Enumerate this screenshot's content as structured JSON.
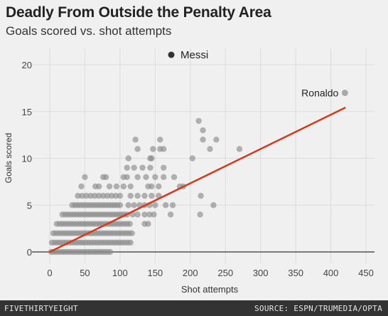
{
  "header": {
    "title": "Deadly From Outside the Penalty Area",
    "subtitle": "Goals scored vs. shot attempts"
  },
  "footer": {
    "logo": "FIVETHIRTYEIGHT",
    "source": "SOURCE: ESPN/TRUMEDIA/OPTA"
  },
  "colors": {
    "background": "#f0f0f0",
    "grid": "#dcdcdc",
    "points": "#8c8c8c",
    "highlight_points": "#aaaaaa",
    "legend_dot": "#333333",
    "trend_line": "#d8371c"
  },
  "chart_data": {
    "type": "scatter",
    "xlabel": "Shot attempts",
    "ylabel": "Goals scored",
    "xlim": [
      0,
      450
    ],
    "ylim": [
      0,
      20
    ],
    "x_ticks": [
      0,
      50,
      100,
      150,
      200,
      250,
      300,
      350,
      400,
      450
    ],
    "y_ticks": [
      0,
      5,
      10,
      15,
      20
    ],
    "grid": true,
    "legend": {
      "label": "Messi",
      "placement": "top-center"
    },
    "trend_line": {
      "x": [
        0,
        420
      ],
      "y": [
        0,
        15.4
      ]
    },
    "annotations": [
      {
        "text": "Ronaldo",
        "x": 420,
        "y": 17
      }
    ],
    "points": [
      {
        "x": 2,
        "y": 0
      },
      {
        "x": 6,
        "y": 0
      },
      {
        "x": 10,
        "y": 0
      },
      {
        "x": 14,
        "y": 0
      },
      {
        "x": 18,
        "y": 0
      },
      {
        "x": 22,
        "y": 0
      },
      {
        "x": 26,
        "y": 0
      },
      {
        "x": 30,
        "y": 0
      },
      {
        "x": 34,
        "y": 0
      },
      {
        "x": 38,
        "y": 0
      },
      {
        "x": 42,
        "y": 0
      },
      {
        "x": 46,
        "y": 0
      },
      {
        "x": 50,
        "y": 0
      },
      {
        "x": 54,
        "y": 0
      },
      {
        "x": 58,
        "y": 0
      },
      {
        "x": 62,
        "y": 0
      },
      {
        "x": 66,
        "y": 0
      },
      {
        "x": 70,
        "y": 0
      },
      {
        "x": 74,
        "y": 0
      },
      {
        "x": 78,
        "y": 0
      },
      {
        "x": 82,
        "y": 0
      },
      {
        "x": 86,
        "y": 0
      },
      {
        "x": 3,
        "y": 1
      },
      {
        "x": 7,
        "y": 1
      },
      {
        "x": 11,
        "y": 1
      },
      {
        "x": 15,
        "y": 1
      },
      {
        "x": 19,
        "y": 1
      },
      {
        "x": 23,
        "y": 1
      },
      {
        "x": 27,
        "y": 1
      },
      {
        "x": 31,
        "y": 1
      },
      {
        "x": 35,
        "y": 1
      },
      {
        "x": 39,
        "y": 1
      },
      {
        "x": 43,
        "y": 1
      },
      {
        "x": 47,
        "y": 1
      },
      {
        "x": 51,
        "y": 1
      },
      {
        "x": 55,
        "y": 1
      },
      {
        "x": 59,
        "y": 1
      },
      {
        "x": 63,
        "y": 1
      },
      {
        "x": 67,
        "y": 1
      },
      {
        "x": 71,
        "y": 1
      },
      {
        "x": 75,
        "y": 1
      },
      {
        "x": 79,
        "y": 1
      },
      {
        "x": 83,
        "y": 1
      },
      {
        "x": 87,
        "y": 1
      },
      {
        "x": 91,
        "y": 1
      },
      {
        "x": 95,
        "y": 1
      },
      {
        "x": 99,
        "y": 1
      },
      {
        "x": 103,
        "y": 1
      },
      {
        "x": 107,
        "y": 1
      },
      {
        "x": 111,
        "y": 1
      },
      {
        "x": 115,
        "y": 1
      },
      {
        "x": 5,
        "y": 2
      },
      {
        "x": 9,
        "y": 2
      },
      {
        "x": 13,
        "y": 2
      },
      {
        "x": 17,
        "y": 2
      },
      {
        "x": 21,
        "y": 2
      },
      {
        "x": 25,
        "y": 2
      },
      {
        "x": 29,
        "y": 2
      },
      {
        "x": 33,
        "y": 2
      },
      {
        "x": 37,
        "y": 2
      },
      {
        "x": 41,
        "y": 2
      },
      {
        "x": 45,
        "y": 2
      },
      {
        "x": 49,
        "y": 2
      },
      {
        "x": 53,
        "y": 2
      },
      {
        "x": 57,
        "y": 2
      },
      {
        "x": 61,
        "y": 2
      },
      {
        "x": 65,
        "y": 2
      },
      {
        "x": 69,
        "y": 2
      },
      {
        "x": 73,
        "y": 2
      },
      {
        "x": 77,
        "y": 2
      },
      {
        "x": 81,
        "y": 2
      },
      {
        "x": 85,
        "y": 2
      },
      {
        "x": 89,
        "y": 2
      },
      {
        "x": 93,
        "y": 2
      },
      {
        "x": 97,
        "y": 2
      },
      {
        "x": 101,
        "y": 2
      },
      {
        "x": 105,
        "y": 2
      },
      {
        "x": 109,
        "y": 2
      },
      {
        "x": 113,
        "y": 2
      },
      {
        "x": 117,
        "y": 2
      },
      {
        "x": 10,
        "y": 3
      },
      {
        "x": 14,
        "y": 3
      },
      {
        "x": 18,
        "y": 3
      },
      {
        "x": 22,
        "y": 3
      },
      {
        "x": 26,
        "y": 3
      },
      {
        "x": 30,
        "y": 3
      },
      {
        "x": 34,
        "y": 3
      },
      {
        "x": 38,
        "y": 3
      },
      {
        "x": 42,
        "y": 3
      },
      {
        "x": 46,
        "y": 3
      },
      {
        "x": 50,
        "y": 3
      },
      {
        "x": 54,
        "y": 3
      },
      {
        "x": 58,
        "y": 3
      },
      {
        "x": 62,
        "y": 3
      },
      {
        "x": 66,
        "y": 3
      },
      {
        "x": 70,
        "y": 3
      },
      {
        "x": 74,
        "y": 3
      },
      {
        "x": 78,
        "y": 3
      },
      {
        "x": 82,
        "y": 3
      },
      {
        "x": 86,
        "y": 3
      },
      {
        "x": 90,
        "y": 3
      },
      {
        "x": 94,
        "y": 3
      },
      {
        "x": 98,
        "y": 3
      },
      {
        "x": 102,
        "y": 3
      },
      {
        "x": 106,
        "y": 3
      },
      {
        "x": 110,
        "y": 3
      },
      {
        "x": 114,
        "y": 3
      },
      {
        "x": 135,
        "y": 3
      },
      {
        "x": 140,
        "y": 3
      },
      {
        "x": 18,
        "y": 4
      },
      {
        "x": 22,
        "y": 4
      },
      {
        "x": 26,
        "y": 4
      },
      {
        "x": 30,
        "y": 4
      },
      {
        "x": 34,
        "y": 4
      },
      {
        "x": 38,
        "y": 4
      },
      {
        "x": 42,
        "y": 4
      },
      {
        "x": 46,
        "y": 4
      },
      {
        "x": 50,
        "y": 4
      },
      {
        "x": 54,
        "y": 4
      },
      {
        "x": 58,
        "y": 4
      },
      {
        "x": 62,
        "y": 4
      },
      {
        "x": 66,
        "y": 4
      },
      {
        "x": 70,
        "y": 4
      },
      {
        "x": 74,
        "y": 4
      },
      {
        "x": 78,
        "y": 4
      },
      {
        "x": 82,
        "y": 4
      },
      {
        "x": 86,
        "y": 4
      },
      {
        "x": 90,
        "y": 4
      },
      {
        "x": 94,
        "y": 4
      },
      {
        "x": 98,
        "y": 4
      },
      {
        "x": 102,
        "y": 4
      },
      {
        "x": 106,
        "y": 4
      },
      {
        "x": 110,
        "y": 4
      },
      {
        "x": 118,
        "y": 4
      },
      {
        "x": 125,
        "y": 4
      },
      {
        "x": 135,
        "y": 4
      },
      {
        "x": 142,
        "y": 4
      },
      {
        "x": 148,
        "y": 4
      },
      {
        "x": 172,
        "y": 4
      },
      {
        "x": 214,
        "y": 4
      },
      {
        "x": 32,
        "y": 5
      },
      {
        "x": 36,
        "y": 5
      },
      {
        "x": 40,
        "y": 5
      },
      {
        "x": 44,
        "y": 5
      },
      {
        "x": 48,
        "y": 5
      },
      {
        "x": 52,
        "y": 5
      },
      {
        "x": 56,
        "y": 5
      },
      {
        "x": 60,
        "y": 5
      },
      {
        "x": 64,
        "y": 5
      },
      {
        "x": 68,
        "y": 5
      },
      {
        "x": 72,
        "y": 5
      },
      {
        "x": 76,
        "y": 5
      },
      {
        "x": 80,
        "y": 5
      },
      {
        "x": 84,
        "y": 5
      },
      {
        "x": 88,
        "y": 5
      },
      {
        "x": 92,
        "y": 5
      },
      {
        "x": 96,
        "y": 5
      },
      {
        "x": 100,
        "y": 5
      },
      {
        "x": 112,
        "y": 5
      },
      {
        "x": 120,
        "y": 5
      },
      {
        "x": 128,
        "y": 5
      },
      {
        "x": 135,
        "y": 5
      },
      {
        "x": 142,
        "y": 5
      },
      {
        "x": 150,
        "y": 5
      },
      {
        "x": 165,
        "y": 5
      },
      {
        "x": 175,
        "y": 5
      },
      {
        "x": 233,
        "y": 5
      },
      {
        "x": 40,
        "y": 6
      },
      {
        "x": 46,
        "y": 6
      },
      {
        "x": 52,
        "y": 6
      },
      {
        "x": 58,
        "y": 6
      },
      {
        "x": 64,
        "y": 6
      },
      {
        "x": 70,
        "y": 6
      },
      {
        "x": 76,
        "y": 6
      },
      {
        "x": 82,
        "y": 6
      },
      {
        "x": 88,
        "y": 6
      },
      {
        "x": 94,
        "y": 6
      },
      {
        "x": 100,
        "y": 6
      },
      {
        "x": 115,
        "y": 6
      },
      {
        "x": 125,
        "y": 6
      },
      {
        "x": 135,
        "y": 6
      },
      {
        "x": 145,
        "y": 6
      },
      {
        "x": 155,
        "y": 6
      },
      {
        "x": 215,
        "y": 6
      },
      {
        "x": 45,
        "y": 7
      },
      {
        "x": 65,
        "y": 7
      },
      {
        "x": 70,
        "y": 7
      },
      {
        "x": 85,
        "y": 7
      },
      {
        "x": 95,
        "y": 7
      },
      {
        "x": 105,
        "y": 7
      },
      {
        "x": 115,
        "y": 7
      },
      {
        "x": 140,
        "y": 7
      },
      {
        "x": 145,
        "y": 7
      },
      {
        "x": 155,
        "y": 7
      },
      {
        "x": 185,
        "y": 7
      },
      {
        "x": 190,
        "y": 7
      },
      {
        "x": 50,
        "y": 8
      },
      {
        "x": 76,
        "y": 8
      },
      {
        "x": 80,
        "y": 8
      },
      {
        "x": 105,
        "y": 8
      },
      {
        "x": 110,
        "y": 8
      },
      {
        "x": 125,
        "y": 8
      },
      {
        "x": 137,
        "y": 8
      },
      {
        "x": 150,
        "y": 8
      },
      {
        "x": 162,
        "y": 8
      },
      {
        "x": 177,
        "y": 8
      },
      {
        "x": 110,
        "y": 9
      },
      {
        "x": 120,
        "y": 9
      },
      {
        "x": 132,
        "y": 9
      },
      {
        "x": 143,
        "y": 9
      },
      {
        "x": 162,
        "y": 9
      },
      {
        "x": 112,
        "y": 10
      },
      {
        "x": 143,
        "y": 10
      },
      {
        "x": 145,
        "y": 10
      },
      {
        "x": 203,
        "y": 10
      },
      {
        "x": 125,
        "y": 11
      },
      {
        "x": 147,
        "y": 11
      },
      {
        "x": 157,
        "y": 11
      },
      {
        "x": 162,
        "y": 11
      },
      {
        "x": 228,
        "y": 11
      },
      {
        "x": 270,
        "y": 11
      },
      {
        "x": 122,
        "y": 12
      },
      {
        "x": 157,
        "y": 12
      },
      {
        "x": 218,
        "y": 12
      },
      {
        "x": 237,
        "y": 12
      },
      {
        "x": 218,
        "y": 13
      },
      {
        "x": 212,
        "y": 14
      }
    ],
    "highlight_points": [
      {
        "x": 420,
        "y": 17
      }
    ]
  }
}
